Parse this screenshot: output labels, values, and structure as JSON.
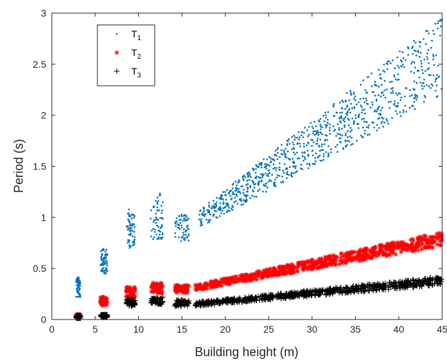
{
  "chart_data": {
    "type": "scatter",
    "title": "",
    "xlabel": "Building height (m)",
    "ylabel": "Period (s)",
    "xlim": [
      0,
      45
    ],
    "ylim": [
      0,
      3
    ],
    "xticks": [
      "0",
      "5",
      "10",
      "15",
      "20",
      "25",
      "30",
      "35",
      "40",
      "45"
    ],
    "yticks": [
      "0",
      "0.5",
      "1",
      "1.5",
      "2",
      "2.5",
      "3"
    ],
    "grid": false,
    "legend_position": "top-left",
    "series": [
      {
        "name": "T",
        "subscript": "1",
        "marker": "dot",
        "color": "#0072BD",
        "clusters": [
          {
            "x": [
              2.8,
              3.3
            ],
            "y": [
              0.22,
              0.42
            ]
          },
          {
            "x": [
              5.6,
              6.4
            ],
            "y": [
              0.45,
              0.7
            ]
          },
          {
            "x": [
              8.6,
              9.6
            ],
            "y": [
              0.7,
              1.08
            ]
          },
          {
            "x": [
              11.4,
              12.8
            ],
            "y": [
              0.78,
              1.24
            ]
          },
          {
            "x": [
              14.2,
              15.8
            ],
            "y": [
              0.76,
              1.03
            ]
          }
        ],
        "trend": {
          "x": [
            17,
            45
          ],
          "y": [
            0.98,
            2.58
          ],
          "spread_start": 0.09,
          "spread_end": 0.38
        },
        "points": [
          [
            3.0,
            0.28
          ],
          [
            6.0,
            0.58
          ],
          [
            9.0,
            0.88
          ],
          [
            12.0,
            1.0
          ],
          [
            15.0,
            0.9
          ],
          [
            20,
            1.1
          ],
          [
            25,
            1.35
          ],
          [
            30,
            1.65
          ],
          [
            35,
            2.0
          ],
          [
            40,
            2.35
          ],
          [
            44.5,
            2.9
          ]
        ]
      },
      {
        "name": "T",
        "subscript": "2",
        "marker": "asterisk",
        "color": "#FF0000",
        "clusters": [
          {
            "x": [
              2.8,
              3.3
            ],
            "y": [
              0.02,
              0.05
            ]
          },
          {
            "x": [
              5.6,
              6.4
            ],
            "y": [
              0.14,
              0.22
            ]
          },
          {
            "x": [
              8.6,
              9.6
            ],
            "y": [
              0.21,
              0.32
            ]
          },
          {
            "x": [
              11.4,
              12.8
            ],
            "y": [
              0.26,
              0.36
            ]
          },
          {
            "x": [
              14.2,
              15.8
            ],
            "y": [
              0.26,
              0.34
            ]
          }
        ],
        "trend": {
          "x": [
            16.5,
            45
          ],
          "y": [
            0.31,
            0.79
          ],
          "spread_start": 0.03,
          "spread_end": 0.07
        },
        "points": [
          [
            3.0,
            0.03
          ],
          [
            6.0,
            0.18
          ],
          [
            9.0,
            0.26
          ],
          [
            12.0,
            0.3
          ],
          [
            15.0,
            0.29
          ],
          [
            20,
            0.37
          ],
          [
            25,
            0.43
          ],
          [
            30,
            0.52
          ],
          [
            35,
            0.6
          ],
          [
            40,
            0.7
          ],
          [
            44.5,
            0.8
          ]
        ]
      },
      {
        "name": "T",
        "subscript": "3",
        "marker": "plus",
        "color": "#000000",
        "clusters": [
          {
            "x": [
              2.8,
              3.3
            ],
            "y": [
              0.01,
              0.04
            ]
          },
          {
            "x": [
              5.6,
              6.4
            ],
            "y": [
              0.02,
              0.05
            ]
          },
          {
            "x": [
              8.6,
              9.6
            ],
            "y": [
              0.13,
              0.2
            ]
          },
          {
            "x": [
              11.4,
              12.8
            ],
            "y": [
              0.15,
              0.22
            ]
          },
          {
            "x": [
              14.2,
              15.8
            ],
            "y": [
              0.13,
              0.19
            ]
          }
        ],
        "trend": {
          "x": [
            16.5,
            45
          ],
          "y": [
            0.15,
            0.38
          ],
          "spread_start": 0.02,
          "spread_end": 0.04
        },
        "points": [
          [
            3.0,
            0.02
          ],
          [
            6.0,
            0.03
          ],
          [
            9.0,
            0.16
          ],
          [
            12.0,
            0.18
          ],
          [
            15.0,
            0.16
          ],
          [
            20,
            0.18
          ],
          [
            25,
            0.21
          ],
          [
            30,
            0.25
          ],
          [
            35,
            0.29
          ],
          [
            40,
            0.33
          ],
          [
            44.5,
            0.39
          ]
        ]
      }
    ]
  }
}
